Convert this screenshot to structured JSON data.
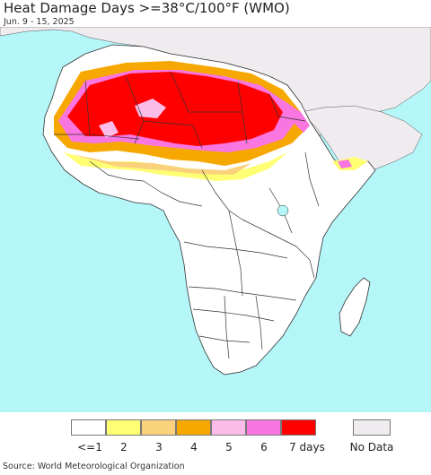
{
  "title": "Heat Damage Days >=38°C/100°F (WMO)",
  "subtitle": "Jun. 9 - 15, 2025",
  "source": "Source: World Meteorological Organization",
  "colors": {
    "ocean": "#b5f6f9",
    "land": "#ffffff",
    "nodata": "#efebef",
    "border": "#333333"
  },
  "legend": {
    "items": [
      {
        "label": "<=1",
        "color": "#ffffff"
      },
      {
        "label": "2",
        "color": "#ffff73"
      },
      {
        "label": "3",
        "color": "#f9d27b"
      },
      {
        "label": "4",
        "color": "#f7a800"
      },
      {
        "label": "5",
        "color": "#fcbcea"
      },
      {
        "label": "6",
        "color": "#f975e0"
      },
      {
        "label": "7 days",
        "color": "#ff0000"
      }
    ],
    "nodata_label": "No Data",
    "nodata_color": "#efebef"
  }
}
